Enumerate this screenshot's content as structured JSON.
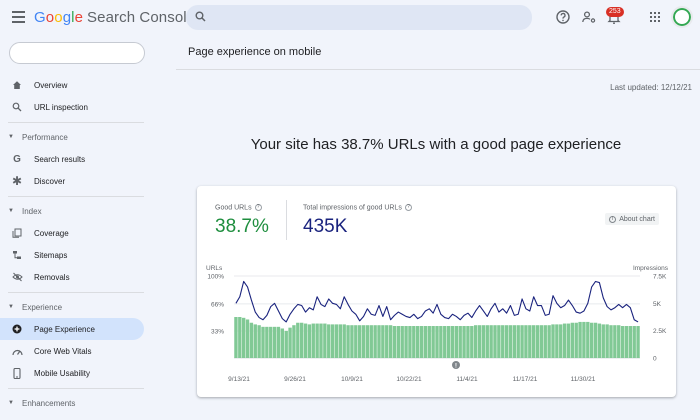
{
  "header": {
    "logo_parts": [
      "G",
      "o",
      "o",
      "g",
      "l",
      "e"
    ],
    "product": "Search Console",
    "search_placeholder": "",
    "notification_count": "253",
    "icons": [
      "menu-icon",
      "search-icon",
      "help-icon",
      "manage-users-icon",
      "bell-icon",
      "apps-grid-icon",
      "avatar"
    ]
  },
  "sidebar": {
    "search_placeholder": "",
    "overview": "Overview",
    "url_inspection": "URL inspection",
    "performance": "Performance",
    "search_results": "Search results",
    "discover": "Discover",
    "index": "Index",
    "coverage": "Coverage",
    "sitemaps": "Sitemaps",
    "removals": "Removals",
    "experience": "Experience",
    "page_experience": "Page Experience",
    "core_web_vitals": "Core Web Vitals",
    "mobile_usability": "Mobile Usability",
    "enhancements": "Enhancements"
  },
  "main": {
    "title": "Page experience on mobile",
    "last_updated": "Last updated: 12/12/21",
    "headline": "Your site has 38.7% URLs with a good page experience"
  },
  "card": {
    "good_urls_label": "Good URLs",
    "good_urls_value": "38.7%",
    "impressions_label": "Total impressions of good URLs",
    "impressions_value": "435K",
    "about_chart": "About chart"
  },
  "colors": {
    "good_green": "#1e8e3e",
    "bar_green": "#81c995",
    "impressions_line": "#1a237e",
    "accent_blue": "#1a73e8"
  },
  "chart_data": {
    "type": "bar",
    "left_axis_title": "URLs",
    "right_axis_title": "Impressions",
    "left_ticks": [
      "100%",
      "66%",
      "33%"
    ],
    "right_ticks": [
      "7.5K",
      "5K",
      "2.5K",
      "0"
    ],
    "left_ylim": [
      0,
      100
    ],
    "right_ylim": [
      0,
      7500
    ],
    "x_tick_labels": [
      "9/13/21",
      "9/26/21",
      "10/9/21",
      "10/22/21",
      "11/4/21",
      "11/17/21",
      "11/30/21"
    ],
    "annotation_marker": "!",
    "grid": true,
    "series": [
      {
        "name": "URLs",
        "kind": "bar",
        "values": [
          50,
          50,
          49,
          47,
          43,
          41,
          40,
          38,
          38,
          38,
          38,
          38,
          36,
          33,
          37,
          40,
          43,
          43,
          42,
          41,
          42,
          42,
          42,
          42,
          41,
          41,
          41,
          41,
          41,
          40,
          40,
          40,
          40,
          40,
          40,
          40,
          40,
          40,
          40,
          40,
          40,
          39,
          39,
          39,
          39,
          39,
          39,
          39,
          39,
          39,
          39,
          39,
          39,
          39,
          39,
          39,
          39,
          39,
          39,
          39,
          39,
          39,
          40,
          40,
          40,
          40,
          40,
          40,
          40,
          40,
          40,
          40,
          40,
          40,
          40,
          40,
          40,
          40,
          40,
          40,
          40,
          40,
          41,
          41,
          41,
          42,
          42,
          43,
          43,
          44,
          44,
          44,
          43,
          43,
          42,
          41,
          41,
          40,
          40,
          40,
          39,
          39,
          39,
          39,
          39
        ]
      },
      {
        "name": "Impressions",
        "kind": "line",
        "values": [
          5000,
          5600,
          7000,
          6500,
          5300,
          4200,
          3700,
          3500,
          3900,
          4700,
          5000,
          4300,
          3600,
          3300,
          4000,
          4500,
          4900,
          4800,
          4200,
          4600,
          4400,
          5600,
          4900,
          4700,
          5400,
          5000,
          4900,
          4500,
          5600,
          4900,
          4300,
          4000,
          3400,
          3800,
          4500,
          4000,
          3900,
          4800,
          3800,
          4700,
          3500,
          3900,
          4200,
          4000,
          3800,
          3700,
          4000,
          3600,
          3800,
          4300,
          4500,
          4100,
          4900,
          4000,
          3700,
          3600,
          4000,
          3800,
          3500,
          3900,
          4100,
          3700,
          4300,
          4800,
          4300,
          3800,
          4500,
          5000,
          4200,
          4500,
          4100,
          4800,
          3900,
          4000,
          5400,
          4500,
          4300,
          5600,
          4800,
          4800,
          3900,
          4000,
          5700,
          5000,
          4600,
          4800,
          5300,
          4800,
          4200,
          4100,
          4300,
          5000,
          6500,
          7000,
          6900,
          5500,
          4700,
          4400,
          4600,
          4900,
          4600,
          4900,
          4600,
          3500,
          3300
        ]
      }
    ]
  }
}
